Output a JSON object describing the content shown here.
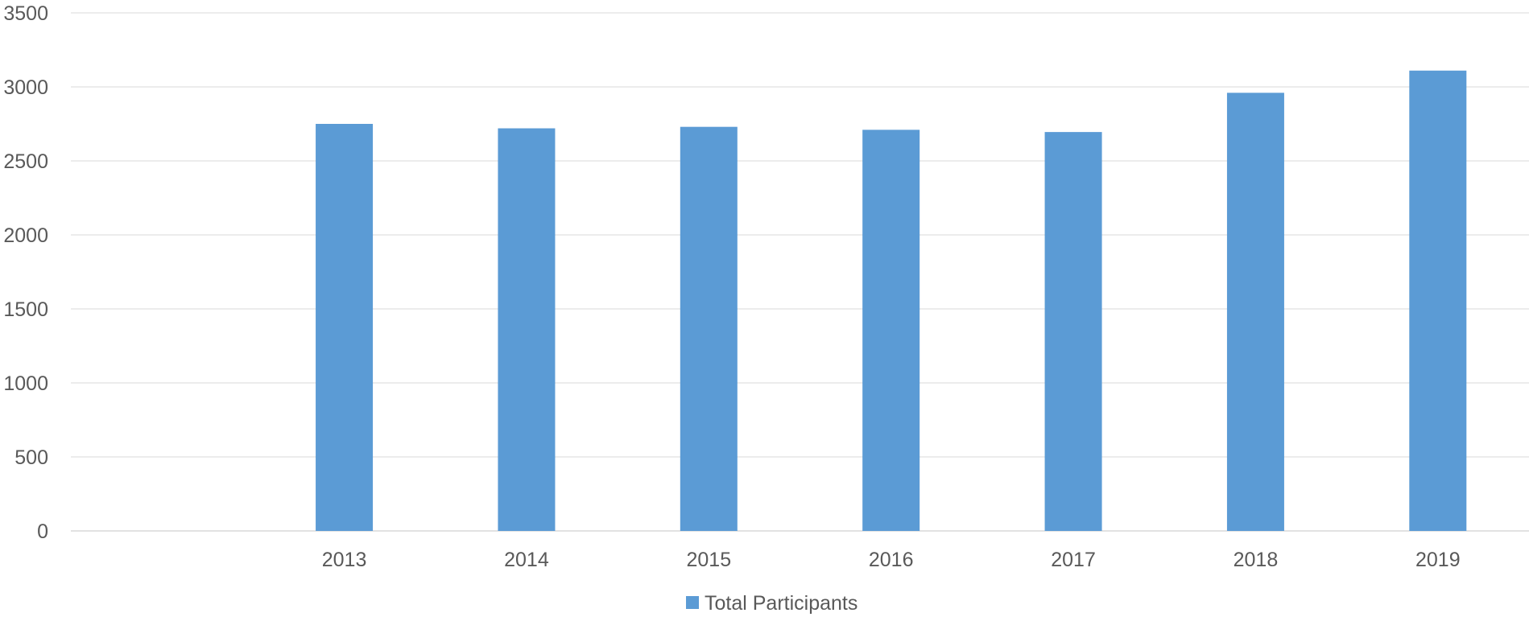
{
  "chart_data": {
    "type": "bar",
    "categories": [
      "",
      "2013",
      "2014",
      "2015",
      "2016",
      "2017",
      "2018",
      "2019"
    ],
    "series": [
      {
        "name": "Total Participants",
        "values": [
          null,
          2750,
          2720,
          2730,
          2710,
          2695,
          2960,
          3110
        ],
        "color": "#5B9BD5"
      }
    ],
    "y_ticks": [
      0,
      500,
      1000,
      1500,
      2000,
      2500,
      3000,
      3500
    ],
    "ylim": [
      0,
      3500
    ],
    "grid": true,
    "legend_position": "bottom",
    "colors": {
      "bar": "#5B9BD5",
      "grid": "#D9D9D9",
      "text": "#595959"
    }
  }
}
